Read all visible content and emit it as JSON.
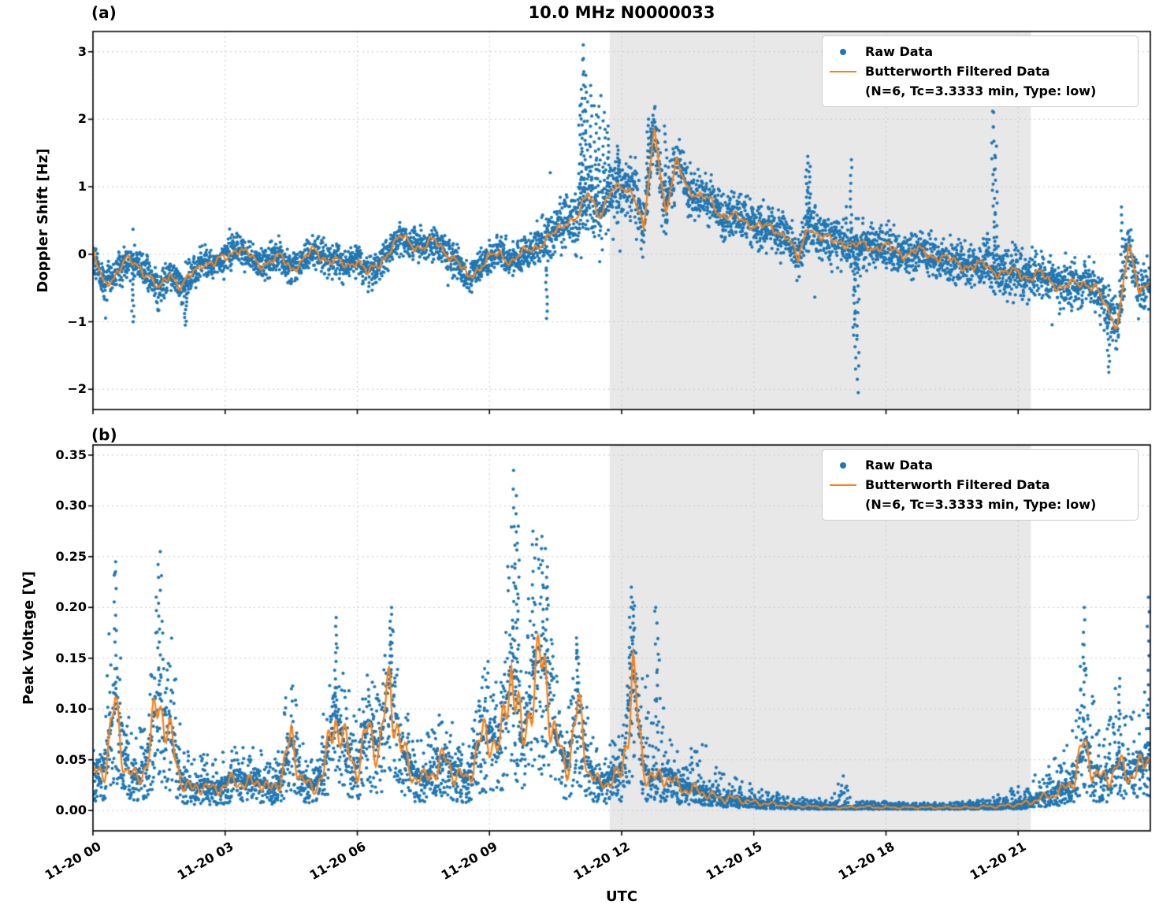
{
  "figure": {
    "title": "10.0 MHz N0000033",
    "panel_a_label": "(a)",
    "panel_b_label": "(b)",
    "xlabel": "UTC",
    "ylabel_a": "Doppler Shift [Hz]",
    "ylabel_b": "Peak Voltage [V]",
    "legend": {
      "raw_label": "Raw Data",
      "filtered_label": "Butterworth Filtered Data",
      "filtered_sublabel": "(N=6, Tc=3.3333 min, Type: low)"
    },
    "colors": {
      "raw": "#1f77b4",
      "filtered": "#ff7f0e",
      "shade": "#e8e8e8",
      "grid": "#c8c8c8",
      "spine": "#000000"
    }
  },
  "chart_data": [
    {
      "panel": "a",
      "type": "scatter",
      "title": "10.0 MHz N0000033",
      "ylabel": "Doppler Shift [Hz]",
      "xlabel": "UTC",
      "grid": true,
      "legend_position": "upper right",
      "series": [
        {
          "name": "Raw Data",
          "style": "scatter",
          "color": "#1f77b4"
        },
        {
          "name": "Butterworth Filtered Data (N=6, Tc=3.3333 min, Type: low)",
          "style": "line",
          "color": "#ff7f0e"
        }
      ],
      "xlim_hours": [
        0,
        24
      ],
      "ylim": [
        -2.3,
        3.3
      ],
      "yticks": [
        3,
        2,
        1,
        0,
        -1,
        -2
      ],
      "ytick_labels": [
        "3",
        "2",
        "1",
        "0",
        "−1",
        "−2"
      ],
      "xticks_hours": [
        0,
        3,
        6,
        9,
        12,
        15,
        18,
        21
      ],
      "xtick_labels": [
        "11-20 00",
        "11-20 03",
        "11-20 06",
        "11-20 09",
        "11-20 12",
        "11-20 15",
        "11-20 18",
        "11-20 21"
      ],
      "shaded_region_hours": [
        11.73,
        21.29
      ],
      "t_start": 0,
      "t_step": 0.25,
      "filtered": [
        0.0,
        -0.45,
        -0.3,
        -0.1,
        -0.15,
        -0.3,
        -0.55,
        -0.25,
        -0.5,
        -0.3,
        -0.1,
        -0.15,
        -0.05,
        0.1,
        0.0,
        -0.15,
        -0.1,
        -0.05,
        -0.2,
        -0.1,
        0.05,
        -0.05,
        -0.1,
        -0.2,
        -0.05,
        -0.3,
        -0.15,
        0.1,
        0.25,
        0.15,
        0.1,
        0.2,
        0.05,
        -0.1,
        -0.35,
        -0.2,
        -0.05,
        0.0,
        -0.1,
        0.0,
        0.1,
        0.2,
        0.3,
        0.5,
        0.55,
        0.9,
        0.6,
        0.9,
        1.0,
        0.95,
        0.35,
        1.9,
        0.6,
        1.35,
        1.0,
        0.85,
        0.8,
        0.6,
        0.55,
        0.5,
        0.45,
        0.4,
        0.35,
        0.3,
        -0.1,
        0.45,
        0.25,
        0.2,
        0.2,
        0.1,
        0.15,
        0.1,
        0.1,
        0.05,
        0.0,
        0.05,
        0.0,
        -0.05,
        -0.1,
        -0.15,
        -0.2,
        -0.15,
        -0.25,
        -0.3,
        -0.25,
        -0.35,
        -0.3,
        -0.4,
        -0.5,
        -0.45,
        -0.4,
        -0.5,
        -0.8,
        -1.05,
        0.1,
        -0.55,
        -0.35
      ],
      "raw_spread": [
        0.35,
        0.35,
        0.35,
        0.35,
        0.35,
        0.35,
        0.35,
        0.35,
        0.35,
        0.35,
        0.35,
        0.35,
        0.35,
        0.35,
        0.35,
        0.35,
        0.35,
        0.35,
        0.35,
        0.35,
        0.35,
        0.35,
        0.35,
        0.35,
        0.35,
        0.35,
        0.35,
        0.35,
        0.35,
        0.35,
        0.35,
        0.35,
        0.35,
        0.35,
        0.35,
        0.35,
        0.35,
        0.35,
        0.35,
        0.35,
        0.45,
        0.5,
        0.5,
        0.55,
        0.8,
        1.0,
        0.9,
        0.8,
        0.7,
        0.7,
        0.6,
        0.6,
        0.6,
        0.6,
        0.55,
        0.55,
        0.5,
        0.5,
        0.5,
        0.5,
        0.5,
        0.5,
        0.5,
        0.5,
        0.5,
        0.5,
        0.5,
        0.5,
        0.5,
        0.5,
        0.5,
        0.5,
        0.5,
        0.5,
        0.5,
        0.5,
        0.5,
        0.5,
        0.5,
        0.5,
        0.5,
        0.5,
        0.5,
        0.5,
        0.5,
        0.5,
        0.5,
        0.5,
        0.55,
        0.55,
        0.55,
        0.55,
        0.6,
        0.6,
        0.55,
        0.55,
        0.55
      ],
      "raw_outliers": [
        [
          0.9,
          -1.0
        ],
        [
          2.1,
          -1.05
        ],
        [
          10.3,
          -0.95
        ],
        [
          11.05,
          2.2
        ],
        [
          11.1,
          3.1
        ],
        [
          11.13,
          2.9
        ],
        [
          11.16,
          2.65
        ],
        [
          11.2,
          2.4
        ],
        [
          11.3,
          2.5
        ],
        [
          11.4,
          2.2
        ],
        [
          11.5,
          2.35
        ],
        [
          11.6,
          2.1
        ],
        [
          11.7,
          1.9
        ],
        [
          11.9,
          1.6
        ],
        [
          12.6,
          2.0
        ],
        [
          12.68,
          1.95
        ],
        [
          13.0,
          1.9
        ],
        [
          16.2,
          1.45
        ],
        [
          16.25,
          1.3
        ],
        [
          17.2,
          1.4
        ],
        [
          17.28,
          -1.2
        ],
        [
          17.32,
          -1.7
        ],
        [
          17.36,
          -2.05
        ],
        [
          20.43,
          2.35
        ],
        [
          20.46,
          2.1
        ],
        [
          20.5,
          1.6
        ],
        [
          23.05,
          -1.75
        ],
        [
          23.35,
          0.7
        ]
      ]
    },
    {
      "panel": "b",
      "type": "scatter",
      "title": "",
      "ylabel": "Peak Voltage [V]",
      "xlabel": "UTC",
      "grid": true,
      "legend_position": "upper right",
      "series": [
        {
          "name": "Raw Data",
          "style": "scatter",
          "color": "#1f77b4"
        },
        {
          "name": "Butterworth Filtered Data (N=6, Tc=3.3333 min, Type: low)",
          "style": "line",
          "color": "#ff7f0e"
        }
      ],
      "xlim_hours": [
        0,
        24
      ],
      "ylim": [
        -0.02,
        0.36
      ],
      "yticks": [
        0.35,
        0.3,
        0.25,
        0.2,
        0.15,
        0.1,
        0.05,
        0.0
      ],
      "ytick_labels": [
        "0.35",
        "0.30",
        "0.25",
        "0.20",
        "0.15",
        "0.10",
        "0.05",
        "0.00"
      ],
      "xticks_hours": [
        0,
        3,
        6,
        9,
        12,
        15,
        18,
        21
      ],
      "xtick_labels": [
        "11-20 00",
        "11-20 03",
        "11-20 06",
        "11-20 09",
        "11-20 12",
        "11-20 15",
        "11-20 18",
        "11-20 21"
      ],
      "shaded_region_hours": [
        11.73,
        21.29
      ],
      "t_start": 0,
      "t_step": 0.25,
      "filtered": [
        0.035,
        0.04,
        0.1,
        0.04,
        0.03,
        0.05,
        0.115,
        0.07,
        0.03,
        0.02,
        0.025,
        0.02,
        0.025,
        0.03,
        0.025,
        0.03,
        0.02,
        0.03,
        0.07,
        0.03,
        0.02,
        0.04,
        0.095,
        0.06,
        0.04,
        0.08,
        0.06,
        0.125,
        0.06,
        0.035,
        0.03,
        0.04,
        0.05,
        0.035,
        0.03,
        0.065,
        0.075,
        0.06,
        0.15,
        0.06,
        0.13,
        0.14,
        0.07,
        0.04,
        0.1,
        0.04,
        0.025,
        0.03,
        0.035,
        0.13,
        0.04,
        0.03,
        0.035,
        0.025,
        0.02,
        0.02,
        0.015,
        0.012,
        0.012,
        0.01,
        0.008,
        0.007,
        0.006,
        0.005,
        0.005,
        0.004,
        0.004,
        0.003,
        0.003,
        0.003,
        0.004,
        0.003,
        0.003,
        0.003,
        0.003,
        0.003,
        0.003,
        0.003,
        0.003,
        0.003,
        0.003,
        0.004,
        0.004,
        0.005,
        0.006,
        0.008,
        0.012,
        0.015,
        0.02,
        0.03,
        0.065,
        0.035,
        0.03,
        0.045,
        0.035,
        0.04,
        0.055
      ],
      "raw_upper": [
        0.08,
        0.12,
        0.245,
        0.1,
        0.07,
        0.12,
        0.255,
        0.19,
        0.08,
        0.05,
        0.06,
        0.05,
        0.06,
        0.07,
        0.06,
        0.07,
        0.05,
        0.08,
        0.15,
        0.07,
        0.05,
        0.1,
        0.19,
        0.13,
        0.09,
        0.15,
        0.13,
        0.2,
        0.12,
        0.08,
        0.07,
        0.09,
        0.1,
        0.08,
        0.07,
        0.13,
        0.15,
        0.12,
        0.335,
        0.14,
        0.28,
        0.27,
        0.15,
        0.09,
        0.17,
        0.09,
        0.06,
        0.07,
        0.08,
        0.22,
        0.12,
        0.2,
        0.08,
        0.06,
        0.05,
        0.09,
        0.06,
        0.04,
        0.035,
        0.03,
        0.025,
        0.02,
        0.018,
        0.015,
        0.013,
        0.012,
        0.012,
        0.01,
        0.04,
        0.01,
        0.01,
        0.009,
        0.009,
        0.008,
        0.008,
        0.008,
        0.008,
        0.008,
        0.008,
        0.009,
        0.01,
        0.012,
        0.015,
        0.02,
        0.025,
        0.03,
        0.04,
        0.05,
        0.06,
        0.09,
        0.2,
        0.1,
        0.08,
        0.13,
        0.09,
        0.12,
        0.21
      ],
      "raw_lower_min": 0.0015,
      "raw_outliers": [
        [
          0.5,
          0.245
        ],
        [
          1.5,
          0.255
        ],
        [
          5.5,
          0.19
        ],
        [
          6.75,
          0.2
        ],
        [
          9.55,
          0.335
        ],
        [
          9.6,
          0.31
        ],
        [
          9.65,
          0.28
        ],
        [
          10.0,
          0.275
        ],
        [
          10.2,
          0.27
        ],
        [
          10.3,
          0.24
        ],
        [
          11.0,
          0.17
        ],
        [
          12.2,
          0.22
        ],
        [
          12.25,
          0.205
        ],
        [
          12.8,
          0.2
        ],
        [
          22.5,
          0.2
        ],
        [
          23.3,
          0.13
        ],
        [
          23.95,
          0.21
        ]
      ]
    }
  ]
}
